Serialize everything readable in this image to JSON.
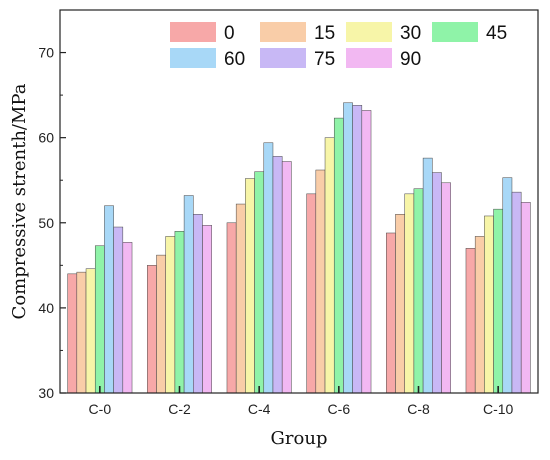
{
  "chart_data": {
    "type": "bar",
    "title": "",
    "xlabel": "Group",
    "ylabel": "Compressive strenth/MPa",
    "ylim": [
      30,
      75
    ],
    "yticks": [
      30,
      40,
      50,
      60,
      70
    ],
    "categories": [
      "C-0",
      "C-2",
      "C-4",
      "C-6",
      "C-8",
      "C-10"
    ],
    "legend_position": "top-right",
    "grid": false,
    "series": [
      {
        "name": "0",
        "color": "#F7A8A8",
        "values": [
          44.0,
          45.0,
          50.0,
          53.4,
          48.8,
          47.0
        ]
      },
      {
        "name": "15",
        "color": "#F9CDA8",
        "values": [
          44.2,
          46.2,
          52.2,
          56.2,
          51.0,
          48.4
        ]
      },
      {
        "name": "30",
        "color": "#F7F5A8",
        "values": [
          44.6,
          48.4,
          55.2,
          60.0,
          53.4,
          50.8
        ]
      },
      {
        "name": "45",
        "color": "#8FF3A8",
        "values": [
          47.3,
          49.0,
          56.0,
          62.3,
          54.0,
          51.6
        ]
      },
      {
        "name": "60",
        "color": "#A8D8F7",
        "values": [
          52.0,
          53.2,
          59.4,
          64.1,
          57.6,
          55.3
        ]
      },
      {
        "name": "75",
        "color": "#C8B8F5",
        "values": [
          49.5,
          51.0,
          57.8,
          63.8,
          55.9,
          53.6
        ]
      },
      {
        "name": "90",
        "color": "#F2B8F2",
        "values": [
          47.7,
          49.7,
          57.2,
          63.2,
          54.7,
          52.4
        ]
      }
    ]
  }
}
